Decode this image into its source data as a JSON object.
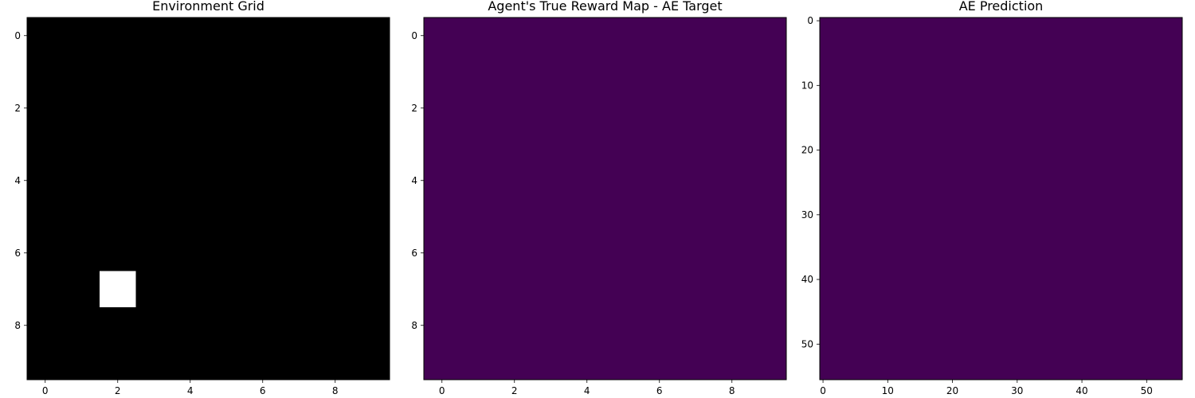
{
  "chart_data": [
    {
      "type": "heatmap",
      "title": "Environment Grid",
      "xlim": [
        -0.5,
        9.5
      ],
      "ylim": [
        9.5,
        -0.5
      ],
      "y_inverted": true,
      "xticks": [
        0,
        2,
        4,
        6,
        8
      ],
      "yticks": [
        0,
        2,
        4,
        6,
        8
      ],
      "grid_size": [
        10,
        10
      ],
      "colormap": "gray",
      "background_value": 0,
      "background_color": "#000000",
      "highlighted_cells": [
        {
          "row": 7,
          "col": 2,
          "value": 1,
          "color": "#ffffff"
        }
      ]
    },
    {
      "type": "heatmap",
      "title": "Agent's True Reward Map - AE Target",
      "xlim": [
        -0.5,
        9.5
      ],
      "ylim": [
        9.5,
        -0.5
      ],
      "y_inverted": true,
      "xticks": [
        0,
        2,
        4,
        6,
        8
      ],
      "yticks": [
        0,
        2,
        4,
        6,
        8
      ],
      "grid_size": [
        10,
        10
      ],
      "colormap": "viridis",
      "uniform_color": "#440154"
    },
    {
      "type": "heatmap",
      "title": "AE Prediction",
      "xlim": [
        -0.5,
        55.5
      ],
      "ylim": [
        55.5,
        -0.5
      ],
      "y_inverted": true,
      "xticks": [
        0,
        10,
        20,
        30,
        40,
        50
      ],
      "yticks": [
        0,
        10,
        20,
        30,
        40,
        50
      ],
      "grid_size": [
        56,
        56
      ],
      "colormap": "viridis",
      "uniform_color": "#440154"
    }
  ]
}
